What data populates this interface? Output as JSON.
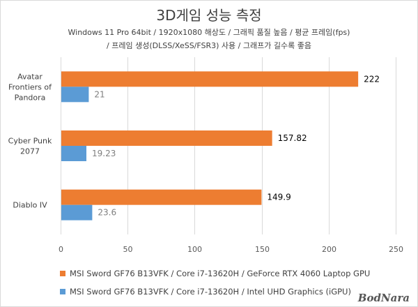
{
  "chart_data": {
    "type": "bar",
    "orientation": "horizontal",
    "title": "3D게임 성능 측정",
    "subtitle_line1": "Windows 11 Pro 64bit / 1920x1080 해상도 / 그래픽 품질 높음 / 평균 프레임(fps)",
    "subtitle_line2": "/ 프레임 생성(DLSS/XeSS/FSR3) 사용 / 그래프가 길수록 좋음",
    "categories": [
      [
        "Avatar",
        "Frontiers of",
        "Pandora"
      ],
      [
        "Cyber Punk",
        "2077"
      ],
      [
        "Diablo IV"
      ]
    ],
    "series": [
      {
        "name": "MSI Sword GF76 B13VFK / Core i7-13620H / GeForce RTX 4060 Laptop GPU",
        "color": "#ED7D31",
        "values": [
          222,
          157.82,
          149.9
        ],
        "labels": [
          "222",
          "157.82",
          "149.9"
        ]
      },
      {
        "name": "MSI Sword GF76 B13VFK / Core i7-13620H / Intel UHD Graphics (iGPU)",
        "color": "#5B9BD5",
        "values": [
          21,
          19.23,
          23.6
        ],
        "labels": [
          "21",
          "19.23",
          "23.6"
        ]
      }
    ],
    "xlim": [
      0,
      250
    ],
    "xticks": [
      0,
      50,
      100,
      150,
      200,
      250
    ],
    "grid": true,
    "legend_position": "bottom"
  },
  "watermark": "BodNara"
}
